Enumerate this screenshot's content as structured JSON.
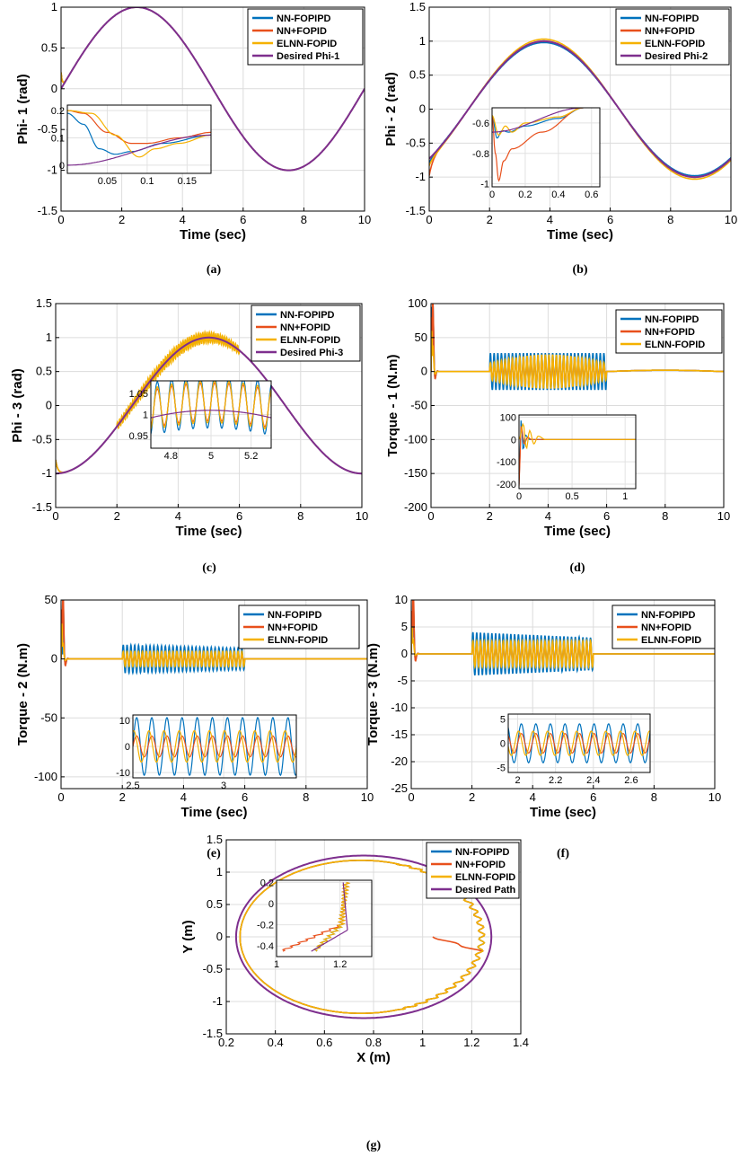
{
  "colors": {
    "NN-FOPIPD": "#0072bd",
    "NN+FOPID": "#e8501c",
    "ELNN-FOPID": "#f5b100",
    "Desired": "#7e2f8e"
  },
  "chart_data": [
    {
      "id": "a",
      "caption": "(a)",
      "type": "line",
      "xlabel": "Time (sec)",
      "ylabel": "Phi- 1  (rad)",
      "xlim": [
        0,
        10
      ],
      "ylim": [
        -1.5,
        1
      ],
      "xticks": [
        0,
        2,
        4,
        6,
        8,
        10
      ],
      "yticks": [
        -1.5,
        -1,
        -0.5,
        0,
        0.5,
        1
      ],
      "series": [
        {
          "name": "NN-FOPIPD",
          "signal": "sine",
          "period": 10,
          "amp": 1
        },
        {
          "name": "NN+FOPID",
          "signal": "sine",
          "period": 10,
          "amp": 1
        },
        {
          "name": "ELNN-FOPID",
          "signal": "sine",
          "period": 10,
          "amp": 1
        },
        {
          "name": "Desired Phi-1",
          "signal": "sine",
          "period": 10,
          "amp": 1
        }
      ],
      "inset": {
        "xlim": [
          0,
          0.18
        ],
        "ylim": [
          -0.03,
          0.22
        ],
        "xticks": [
          0.05,
          0.1,
          0.15
        ],
        "yticks": [
          0,
          0.1,
          0.2
        ],
        "series": [
          {
            "name": "NN-FOPIPD",
            "x": [
              0,
              0.02,
              0.04,
              0.06,
              0.08,
              0.12,
              0.18
            ],
            "y": [
              0.19,
              0.15,
              0.06,
              0.04,
              0.05,
              0.08,
              0.11
            ]
          },
          {
            "name": "NN+FOPID",
            "x": [
              0,
              0.02,
              0.05,
              0.08,
              0.1,
              0.14,
              0.18
            ],
            "y": [
              0.2,
              0.19,
              0.12,
              0.08,
              0.08,
              0.1,
              0.12
            ]
          },
          {
            "name": "ELNN-FOPID",
            "x": [
              0,
              0.03,
              0.06,
              0.09,
              0.11,
              0.14,
              0.18
            ],
            "y": [
              0.2,
              0.19,
              0.11,
              0.03,
              0.06,
              0.08,
              0.11
            ]
          },
          {
            "name": "Desired Phi-1",
            "x": [
              0,
              0.18
            ],
            "y": [
              0,
              0.11
            ]
          }
        ]
      }
    },
    {
      "id": "b",
      "caption": "(b)",
      "type": "line",
      "xlabel": "Time (sec)",
      "ylabel": "Phi - 2  (rad)",
      "xlim": [
        0,
        10
      ],
      "ylim": [
        -1.5,
        1.5
      ],
      "xticks": [
        0,
        2,
        4,
        6,
        8,
        10
      ],
      "yticks": [
        -1.5,
        -1,
        -0.5,
        0,
        0.5,
        1,
        1.5
      ],
      "series": [
        {
          "name": "NN-FOPIPD",
          "signal": "sine_shift",
          "amp": 0.98
        },
        {
          "name": "NN+FOPID",
          "signal": "sine_shift",
          "amp": 1.0
        },
        {
          "name": "ELNN-FOPID",
          "signal": "sine_shift",
          "amp": 1.03
        },
        {
          "name": "Desired Phi-2",
          "signal": "sine_shift",
          "amp": 1.0
        }
      ],
      "inset": {
        "xlim": [
          0,
          0.65
        ],
        "ylim": [
          -1.02,
          -0.5
        ],
        "xticks": [
          0,
          0.2,
          0.4,
          0.6
        ],
        "yticks": [
          -1,
          -0.8,
          -0.6
        ],
        "series": [
          {
            "name": "NN-FOPIPD",
            "x": [
              0,
              0.03,
              0.06,
              0.1,
              0.2,
              0.4,
              0.55
            ],
            "y": [
              -0.55,
              -0.7,
              -0.65,
              -0.66,
              -0.62,
              -0.57,
              -0.5
            ]
          },
          {
            "name": "NN+FOPID",
            "x": [
              0,
              0.02,
              0.04,
              0.07,
              0.12,
              0.3,
              0.55
            ],
            "y": [
              -0.55,
              -0.8,
              -0.98,
              -0.85,
              -0.77,
              -0.66,
              -0.5
            ]
          },
          {
            "name": "ELNN-FOPID",
            "x": [
              0,
              0.04,
              0.08,
              0.12,
              0.2,
              0.4,
              0.55
            ],
            "y": [
              -0.55,
              -0.68,
              -0.62,
              -0.66,
              -0.6,
              -0.56,
              -0.5
            ]
          },
          {
            "name": "Desired Phi-2",
            "x": [
              0,
              0.55
            ],
            "y": [
              -0.66,
              -0.5
            ]
          }
        ]
      }
    },
    {
      "id": "c",
      "caption": "(c)",
      "type": "line",
      "xlabel": "Time (sec)",
      "ylabel": "Phi - 3  (rad)",
      "xlim": [
        0,
        10
      ],
      "ylim": [
        -1.5,
        1.5
      ],
      "xticks": [
        0,
        2,
        4,
        6,
        8,
        10
      ],
      "yticks": [
        -1.5,
        -1,
        -0.5,
        0,
        0.5,
        1,
        1.5
      ],
      "series": [
        {
          "name": "NN-FOPIPD",
          "signal": "cos_osc",
          "osc_amp": 0.06
        },
        {
          "name": "NN+FOPID",
          "signal": "cos_osc",
          "osc_amp": 0.05
        },
        {
          "name": "ELNN-FOPID",
          "signal": "cos_osc",
          "osc_amp": 0.09
        },
        {
          "name": "Desired Phi-3",
          "signal": "cos_osc",
          "osc_amp": 0
        }
      ],
      "inset": {
        "xlim": [
          4.7,
          5.3
        ],
        "ylim": [
          0.92,
          1.08
        ],
        "xticks": [
          4.8,
          5,
          5.2
        ],
        "yticks": [
          0.95,
          1,
          1.05
        ],
        "series": [
          {
            "name": "NN-FOPIPD",
            "osc_amp": 0.062,
            "freq": 14
          },
          {
            "name": "NN+FOPID",
            "osc_amp": 0.045,
            "freq": 14
          },
          {
            "name": "ELNN-FOPID",
            "osc_amp": 0.05,
            "freq": 14
          },
          {
            "name": "Desired Phi-3",
            "osc_amp": 0,
            "freq": 14
          }
        ]
      }
    },
    {
      "id": "d",
      "caption": "(d)",
      "type": "line",
      "xlabel": "Time (sec)",
      "ylabel": "Torque - 1  (N.m)",
      "xlim": [
        0,
        10
      ],
      "ylim": [
        -200,
        100
      ],
      "xticks": [
        0,
        2,
        4,
        6,
        8,
        10
      ],
      "yticks": [
        -200,
        -150,
        -100,
        -50,
        0,
        50,
        100
      ],
      "series": [
        {
          "name": "NN-FOPIPD",
          "spike": [
            95,
            -190
          ],
          "band": 30
        },
        {
          "name": "NN+FOPID",
          "spike": [
            80,
            -200
          ],
          "band": 20
        },
        {
          "name": "ELNN-FOPID",
          "spike": [
            60,
            -70
          ],
          "band": 25
        }
      ],
      "inset": {
        "xlim": [
          0,
          1.1
        ],
        "ylim": [
          -220,
          110
        ],
        "xticks": [
          0,
          0.5,
          1
        ],
        "yticks": [
          -200,
          -100,
          0,
          100
        ],
        "series": [
          {
            "name": "NN-FOPIPD",
            "x": [
              0,
              0.02,
              0.04,
              0.06,
              0.1,
              0.2,
              1.1
            ],
            "y": [
              -200,
              90,
              -50,
              20,
              0,
              0,
              0
            ]
          },
          {
            "name": "NN+FOPID",
            "x": [
              0,
              0.02,
              0.05,
              0.08,
              0.12,
              0.2,
              1.1
            ],
            "y": [
              -210,
              60,
              -20,
              10,
              0,
              0,
              0
            ]
          },
          {
            "name": "ELNN-FOPID",
            "x": [
              0,
              0.04,
              0.07,
              0.1,
              0.14,
              0.18,
              0.25,
              1.1
            ],
            "y": [
              0,
              70,
              -40,
              40,
              -20,
              15,
              0,
              0
            ]
          }
        ]
      }
    },
    {
      "id": "e",
      "caption": "(e)",
      "type": "line",
      "xlabel": "Time (sec)",
      "ylabel": "Torque - 2  (N.m)",
      "xlim": [
        0,
        10
      ],
      "ylim": [
        -110,
        50
      ],
      "xticks": [
        0,
        2,
        4,
        6,
        8,
        10
      ],
      "yticks": [
        -100,
        -50,
        0,
        50
      ],
      "series": [
        {
          "name": "NN-FOPIPD",
          "spike": [
            10,
            -100
          ],
          "band": 12
        },
        {
          "name": "NN+FOPID",
          "spike": [
            42,
            -108
          ],
          "band": 6
        },
        {
          "name": "ELNN-FOPID",
          "spike": [
            30,
            -25
          ],
          "band": 8
        }
      ],
      "inset": {
        "xlim": [
          2.5,
          3.4
        ],
        "ylim": [
          -12,
          12
        ],
        "xticks": [
          2.5,
          3
        ],
        "yticks": [
          -10,
          0,
          10
        ],
        "series": [
          {
            "name": "NN-FOPIPD",
            "osc_amp": 11,
            "freq": 12
          },
          {
            "name": "NN+FOPID",
            "osc_amp": 4,
            "freq": 12
          },
          {
            "name": "ELNN-FOPID",
            "osc_amp": 6,
            "freq": 12
          }
        ]
      }
    },
    {
      "id": "f",
      "caption": "(f)",
      "type": "line",
      "xlabel": "Time (sec)",
      "ylabel": "Torque - 3  (N.m)",
      "xlim": [
        0,
        10
      ],
      "ylim": [
        -25,
        10
      ],
      "xticks": [
        0,
        2,
        4,
        6,
        8,
        10
      ],
      "yticks": [
        -25,
        -20,
        -15,
        -10,
        -5,
        0,
        5,
        10
      ],
      "series": [
        {
          "name": "NN-FOPIPD",
          "spike": [
            8,
            -21
          ],
          "band": 4
        },
        {
          "name": "NN+FOPID",
          "spike": [
            8,
            -25
          ],
          "band": 2.5
        },
        {
          "name": "ELNN-FOPID",
          "spike": [
            5,
            -5
          ],
          "band": 3
        }
      ],
      "inset": {
        "xlim": [
          1.95,
          2.7
        ],
        "ylim": [
          -6,
          6
        ],
        "xticks": [
          2,
          2.2,
          2.4,
          2.6
        ],
        "yticks": [
          -5,
          0,
          5
        ],
        "series": [
          {
            "name": "NN-FOPIPD",
            "osc_amp": 4,
            "freq": 13
          },
          {
            "name": "NN+FOPID",
            "osc_amp": 2,
            "freq": 13
          },
          {
            "name": "ELNN-FOPID",
            "osc_amp": 2.5,
            "freq": 13
          }
        ]
      }
    },
    {
      "id": "g",
      "caption": "(g)",
      "type": "line",
      "xlabel": "X (m)",
      "ylabel": "Y (m)",
      "xlim": [
        0.2,
        1.4
      ],
      "ylim": [
        -1.5,
        1.5
      ],
      "xticks": [
        0.2,
        0.4,
        0.6,
        0.8,
        1,
        1.2,
        1.4
      ],
      "yticks": [
        -1.5,
        -1,
        -0.5,
        0,
        0.5,
        1,
        1.5
      ],
      "series": [
        {
          "name": "NN-FOPIPD"
        },
        {
          "name": "NN+FOPID"
        },
        {
          "name": "ELNN-FOPID"
        },
        {
          "name": "Desired Path"
        }
      ],
      "inset": {
        "xlim": [
          1.0,
          1.3
        ],
        "ylim": [
          -0.5,
          0.22
        ],
        "xticks": [
          1,
          1.2
        ],
        "yticks": [
          -0.4,
          -0.2,
          0,
          0.2
        ],
        "series": [
          {
            "name": "NN-FOPIPD"
          },
          {
            "name": "NN+FOPID"
          },
          {
            "name": "ELNN-FOPID"
          },
          {
            "name": "Desired Path"
          }
        ]
      }
    }
  ]
}
